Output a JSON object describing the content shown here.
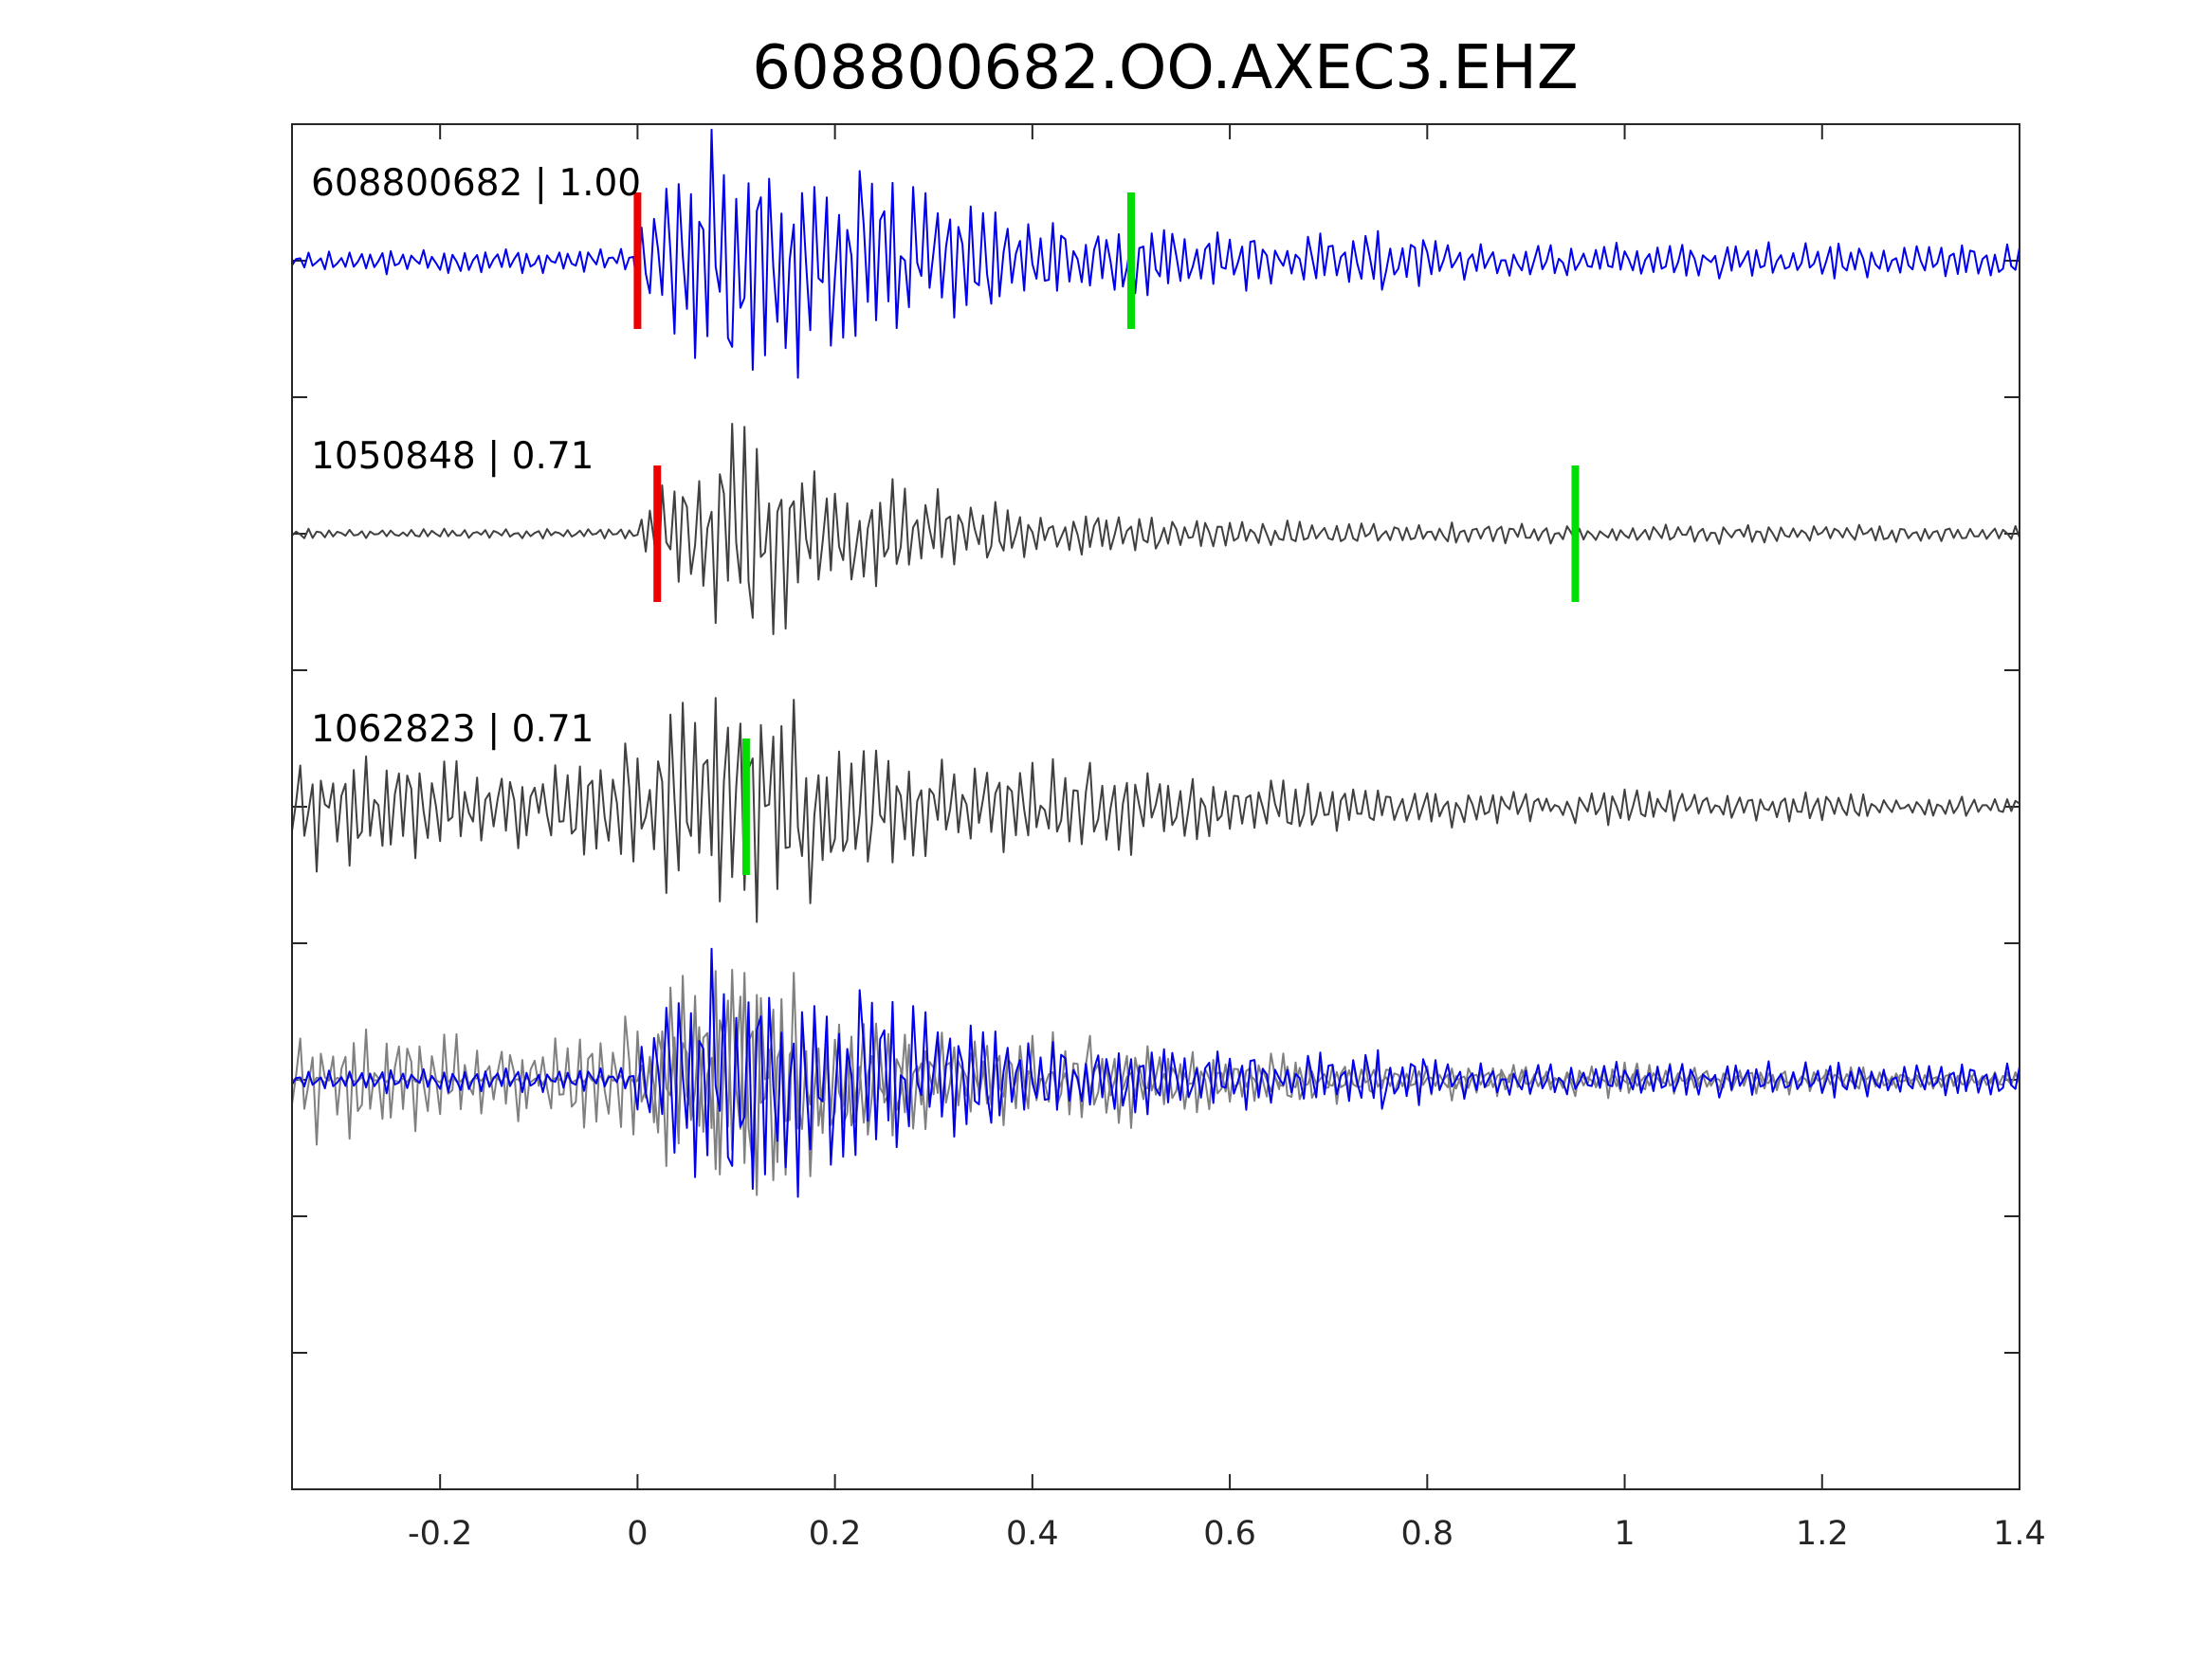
{
  "chart_data": {
    "type": "line",
    "title": "608800682.OO.AXEC3.EHZ",
    "xlabel": "",
    "ylabel": "",
    "xlim": [
      -0.35,
      1.4
    ],
    "xticks": [
      -0.2,
      0,
      0.2,
      0.4,
      0.6,
      0.8,
      1,
      1.2,
      1.4
    ],
    "xtick_labels": [
      "-0.2",
      "0",
      "0.2",
      "0.4",
      "0.6",
      "0.8",
      "1",
      "1.2",
      "1.4"
    ],
    "ylim": [
      -4.5,
      0.5
    ],
    "yticks": [
      -4,
      -3.5,
      -3,
      -2.5,
      -2,
      -1.5,
      -1,
      -0.5,
      0
    ],
    "grid": false,
    "colors": {
      "template": "#0000ee",
      "match": "#404040",
      "overlay_match": "#808080",
      "p_pick": "#ee0000",
      "s_pick": "#00dd00"
    },
    "series": [
      {
        "label": "608800682 | 1.00",
        "offset": 0,
        "color": "#0000ee",
        "p_pick": 0.0,
        "s_pick": 0.5,
        "onset": 0.0,
        "envelope": [
          [
            -0.35,
            0.05
          ],
          [
            -0.01,
            0.05
          ],
          [
            0.02,
            0.35
          ],
          [
            0.08,
            0.55
          ],
          [
            0.2,
            0.4
          ],
          [
            0.35,
            0.2
          ],
          [
            0.55,
            0.12
          ],
          [
            0.75,
            0.12
          ],
          [
            0.85,
            0.07
          ],
          [
            1.4,
            0.07
          ]
        ]
      },
      {
        "label": "1050848 | 0.71",
        "offset": -1,
        "color": "#404040",
        "p_pick": 0.02,
        "s_pick": 0.95,
        "onset": 0.02,
        "envelope": [
          [
            -0.35,
            0.02
          ],
          [
            0.0,
            0.02
          ],
          [
            0.03,
            0.3
          ],
          [
            0.08,
            0.48
          ],
          [
            0.18,
            0.3
          ],
          [
            0.3,
            0.2
          ],
          [
            0.4,
            0.1
          ],
          [
            0.6,
            0.05
          ],
          [
            1.4,
            0.03
          ]
        ]
      },
      {
        "label": "1062823 | 0.71",
        "offset": -2,
        "color": "#404040",
        "p_pick": null,
        "s_pick": 0.11,
        "onset": -0.35,
        "envelope": [
          [
            -0.35,
            0.25
          ],
          [
            -0.1,
            0.15
          ],
          [
            -0.05,
            0.2
          ],
          [
            0.0,
            0.35
          ],
          [
            0.1,
            0.45
          ],
          [
            0.18,
            0.4
          ],
          [
            0.3,
            0.22
          ],
          [
            0.5,
            0.18
          ],
          [
            0.6,
            0.12
          ],
          [
            0.8,
            0.08
          ],
          [
            1.4,
            0.04
          ]
        ]
      }
    ],
    "overlay_offset": -3
  }
}
